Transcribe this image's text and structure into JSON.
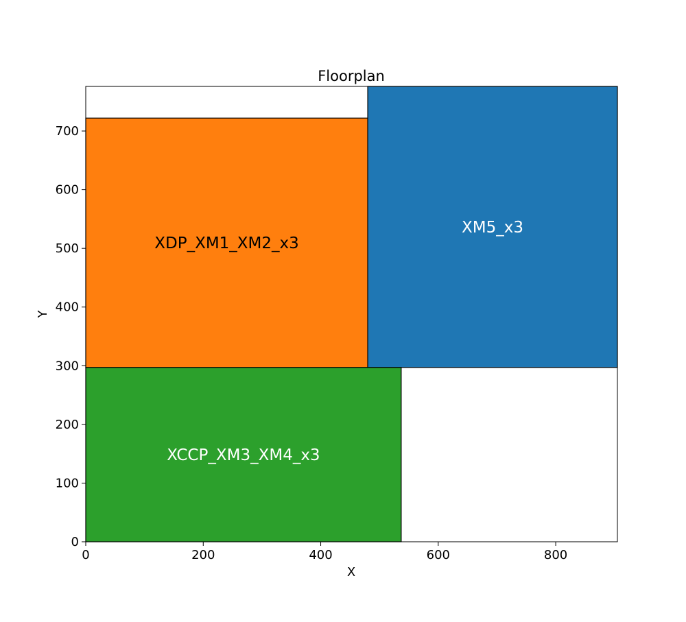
{
  "chart_data": {
    "type": "floorplan",
    "title": "Floorplan",
    "xlabel": "X",
    "ylabel": "Y",
    "xlim": [
      0,
      905
    ],
    "ylim": [
      0,
      776
    ],
    "xticks": [
      0,
      200,
      400,
      600,
      800
    ],
    "yticks": [
      0,
      100,
      200,
      300,
      400,
      500,
      600,
      700
    ],
    "grid": false,
    "blocks": [
      {
        "name": "XDP_XM1_XM2_x3",
        "x": 0,
        "y": 297,
        "width": 480,
        "height": 425,
        "color": "#ff7f0e",
        "label_color": "#000000"
      },
      {
        "name": "XM5_x3",
        "x": 480,
        "y": 297,
        "width": 425,
        "height": 479,
        "color": "#1f77b4",
        "label_color": "#ffffff"
      },
      {
        "name": "XCCP_XM3_XM4_x3",
        "x": 0,
        "y": 0,
        "width": 537,
        "height": 297,
        "color": "#2ca02c",
        "label_color": "#ffffff"
      }
    ]
  }
}
